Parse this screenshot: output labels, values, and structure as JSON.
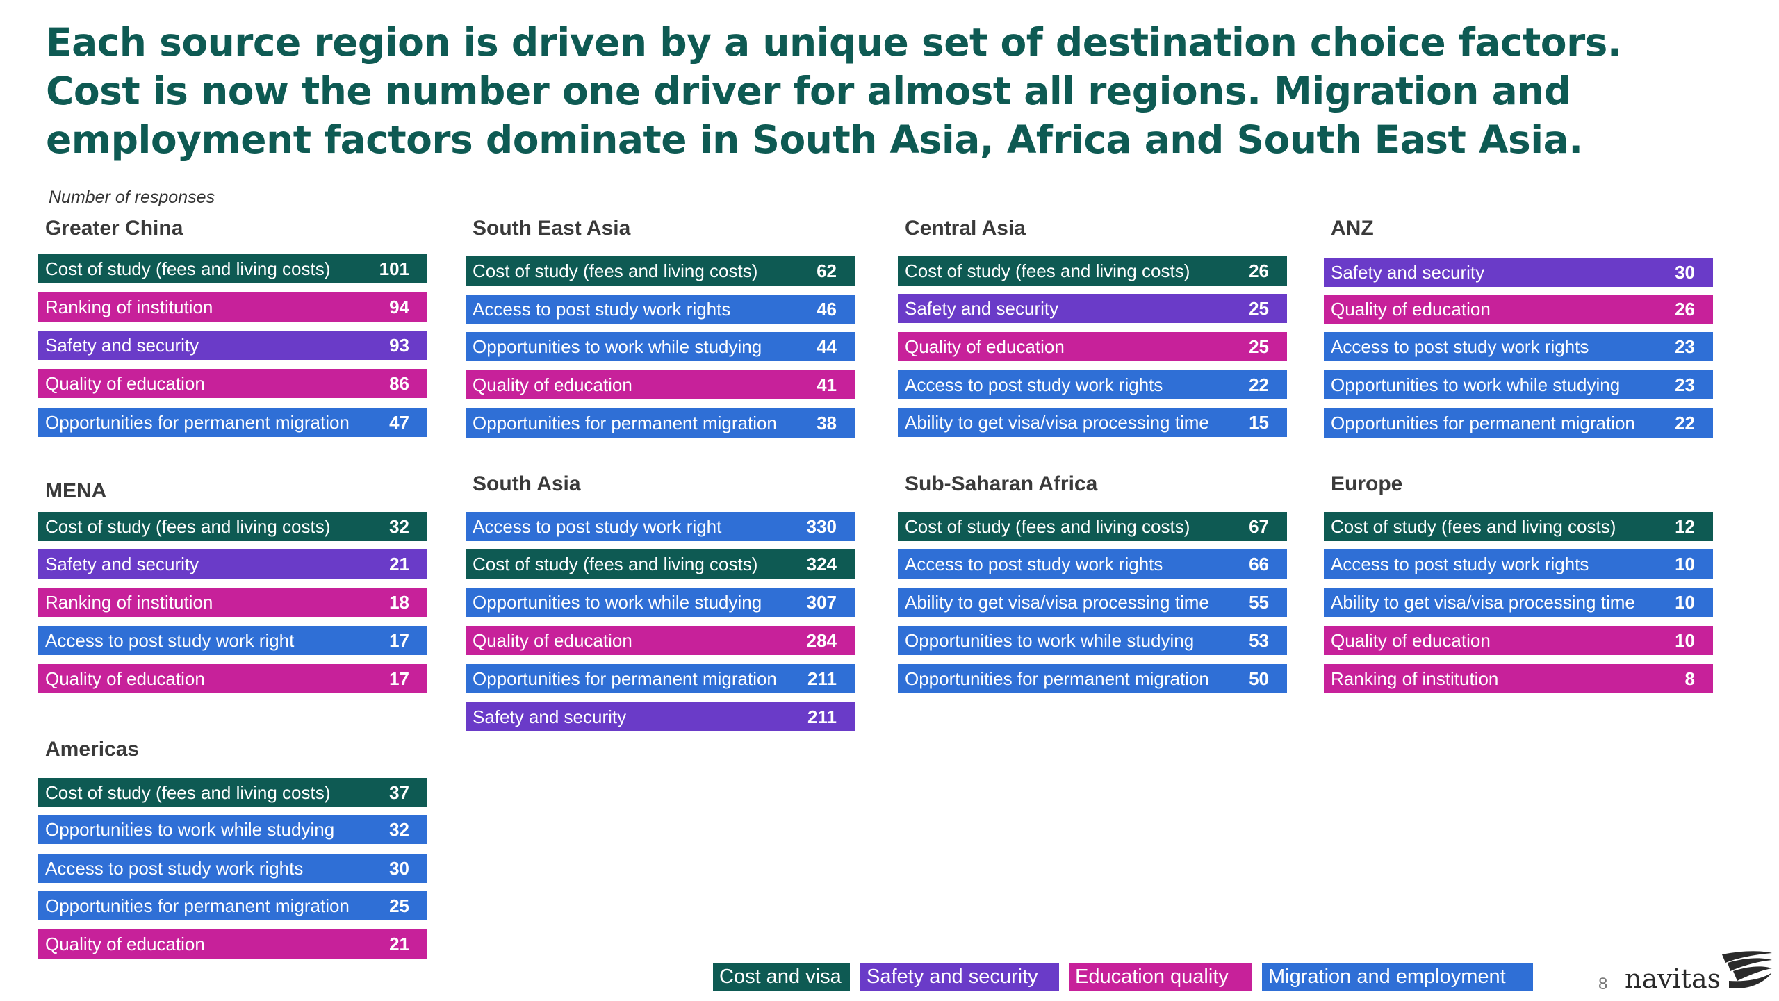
{
  "title": "Each source region is driven by a unique set of destination choice factors. Cost is now the number one driver for almost all regions. Migration and employment factors dominate in South Asia, Africa and South East Asia.",
  "note": "Number of responses",
  "colors": {
    "cost": "#0e5a53",
    "safety": "#6a3bc8",
    "education": "#c7219a",
    "migration": "#2f6fd6"
  },
  "regions": [
    {
      "name": "Greater China",
      "rows": [
        {
          "label": "Cost of study (fees and living costs)",
          "value": "101",
          "cat": "cost"
        },
        {
          "label": "Ranking of institution",
          "value": "94",
          "cat": "education"
        },
        {
          "label": "Safety and security",
          "value": "93",
          "cat": "safety"
        },
        {
          "label": "Quality of education",
          "value": "86",
          "cat": "education"
        },
        {
          "label": "Opportunities for permanent migration",
          "value": "47",
          "cat": "migration"
        }
      ]
    },
    {
      "name": "South East Asia",
      "rows": [
        {
          "label": "Cost of study (fees and living costs)",
          "value": "62",
          "cat": "cost"
        },
        {
          "label": "Access to post study work rights",
          "value": "46",
          "cat": "migration"
        },
        {
          "label": "Opportunities to work while studying",
          "value": "44",
          "cat": "migration"
        },
        {
          "label": "Quality of education",
          "value": "41",
          "cat": "education"
        },
        {
          "label": "Opportunities for permanent migration",
          "value": "38",
          "cat": "migration"
        }
      ]
    },
    {
      "name": "Central Asia",
      "rows": [
        {
          "label": "Cost of study (fees and living costs)",
          "value": "26",
          "cat": "cost"
        },
        {
          "label": "Safety and security",
          "value": "25",
          "cat": "safety"
        },
        {
          "label": "Quality of education",
          "value": "25",
          "cat": "education"
        },
        {
          "label": "Access to post study work rights",
          "value": "22",
          "cat": "migration"
        },
        {
          "label": "Ability to get visa/visa processing time",
          "value": "15",
          "cat": "migration"
        }
      ]
    },
    {
      "name": "ANZ",
      "rows": [
        {
          "label": "Safety and security",
          "value": "30",
          "cat": "safety"
        },
        {
          "label": "Quality of education",
          "value": "26",
          "cat": "education"
        },
        {
          "label": "Access to post study work rights",
          "value": "23",
          "cat": "migration"
        },
        {
          "label": "Opportunities to work while studying",
          "value": "23",
          "cat": "migration"
        },
        {
          "label": "Opportunities for permanent migration",
          "value": "22",
          "cat": "migration"
        }
      ]
    },
    {
      "name": "MENA",
      "rows": [
        {
          "label": "Cost of study (fees and living costs)",
          "value": "32",
          "cat": "cost"
        },
        {
          "label": "Safety and security",
          "value": "21",
          "cat": "safety"
        },
        {
          "label": "Ranking of institution",
          "value": "18",
          "cat": "education"
        },
        {
          "label": "Access to post study work right",
          "value": "17",
          "cat": "migration"
        },
        {
          "label": "Quality of education",
          "value": "17",
          "cat": "education"
        }
      ]
    },
    {
      "name": "South Asia",
      "rows": [
        {
          "label": "Access to post study work right",
          "value": "330",
          "cat": "migration"
        },
        {
          "label": "Cost of study (fees and living costs)",
          "value": "324",
          "cat": "cost"
        },
        {
          "label": "Opportunities to work while studying",
          "value": "307",
          "cat": "migration"
        },
        {
          "label": "Quality of education",
          "value": "284",
          "cat": "education"
        },
        {
          "label": "Opportunities for permanent migration",
          "value": "211",
          "cat": "migration"
        },
        {
          "label": "Safety and security",
          "value": "211",
          "cat": "safety"
        }
      ]
    },
    {
      "name": "Sub-Saharan Africa",
      "rows": [
        {
          "label": "Cost of study (fees and living costs)",
          "value": "67",
          "cat": "cost"
        },
        {
          "label": "Access to post study work rights",
          "value": "66",
          "cat": "migration"
        },
        {
          "label": "Ability to get visa/visa processing time",
          "value": "55",
          "cat": "migration"
        },
        {
          "label": "Opportunities to work while studying",
          "value": "53",
          "cat": "migration"
        },
        {
          "label": "Opportunities for permanent migration",
          "value": "50",
          "cat": "migration"
        }
      ]
    },
    {
      "name": "Europe",
      "rows": [
        {
          "label": "Cost of study (fees and living costs)",
          "value": "12",
          "cat": "cost"
        },
        {
          "label": "Access to post study work rights",
          "value": "10",
          "cat": "migration"
        },
        {
          "label": "Ability to get visa/visa processing time",
          "value": "10",
          "cat": "migration"
        },
        {
          "label": "Quality of education",
          "value": "10",
          "cat": "education"
        },
        {
          "label": "Ranking of institution",
          "value": "8",
          "cat": "education"
        }
      ]
    },
    {
      "name": "Americas",
      "rows": [
        {
          "label": "Cost of study (fees and living costs)",
          "value": "37",
          "cat": "cost"
        },
        {
          "label": "Opportunities to work while studying",
          "value": "32",
          "cat": "migration"
        },
        {
          "label": "Access to post study work rights",
          "value": "30",
          "cat": "migration"
        },
        {
          "label": "Opportunities for permanent migration",
          "value": "25",
          "cat": "migration"
        },
        {
          "label": "Quality of education",
          "value": "21",
          "cat": "education"
        }
      ]
    }
  ],
  "legend": [
    {
      "label": "Cost and visa",
      "cat": "cost"
    },
    {
      "label": "Safety and security",
      "cat": "safety"
    },
    {
      "label": "Education quality",
      "cat": "education"
    },
    {
      "label": "Migration and employment",
      "cat": "migration"
    }
  ],
  "page_number": "8",
  "logo_text": "navitas"
}
